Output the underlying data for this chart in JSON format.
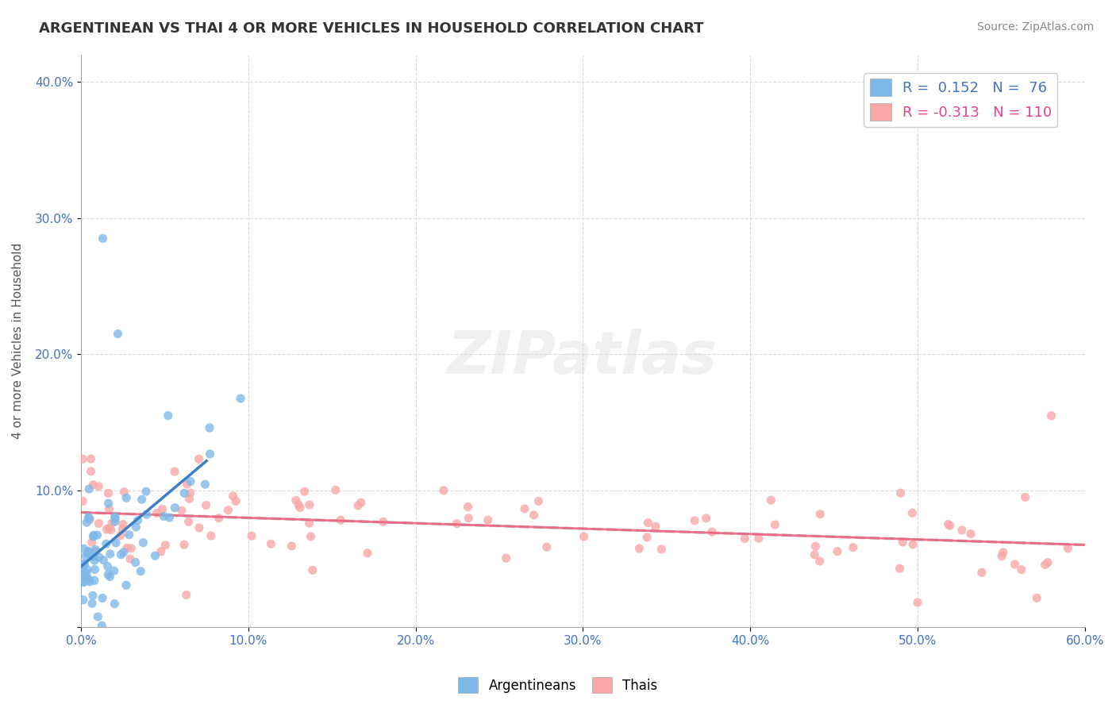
{
  "title": "ARGENTINEAN VS THAI 4 OR MORE VEHICLES IN HOUSEHOLD CORRELATION CHART",
  "source": "Source: ZipAtlas.com",
  "ylabel": "4 or more Vehicles in Household",
  "xlim": [
    0.0,
    0.6
  ],
  "ylim": [
    0.0,
    0.42
  ],
  "xticks": [
    0.0,
    0.1,
    0.2,
    0.3,
    0.4,
    0.5,
    0.6
  ],
  "yticks": [
    0.0,
    0.1,
    0.2,
    0.3,
    0.4
  ],
  "xticklabels": [
    "0.0%",
    "10.0%",
    "20.0%",
    "30.0%",
    "40.0%",
    "50.0%",
    "60.0%"
  ],
  "yticklabels": [
    "",
    "10.0%",
    "20.0%",
    "30.0%",
    "40.0%"
  ],
  "color_arg": "#7EB8E8",
  "color_thai": "#F9A8A8",
  "line_color_arg": "#3A7FC1",
  "line_color_thai": "#F06080",
  "legend_text_color_arg": "#4472C4",
  "legend_text_color_thai": "#E84090",
  "background_color": "#FFFFFF",
  "grid_color": "#CCCCCC"
}
